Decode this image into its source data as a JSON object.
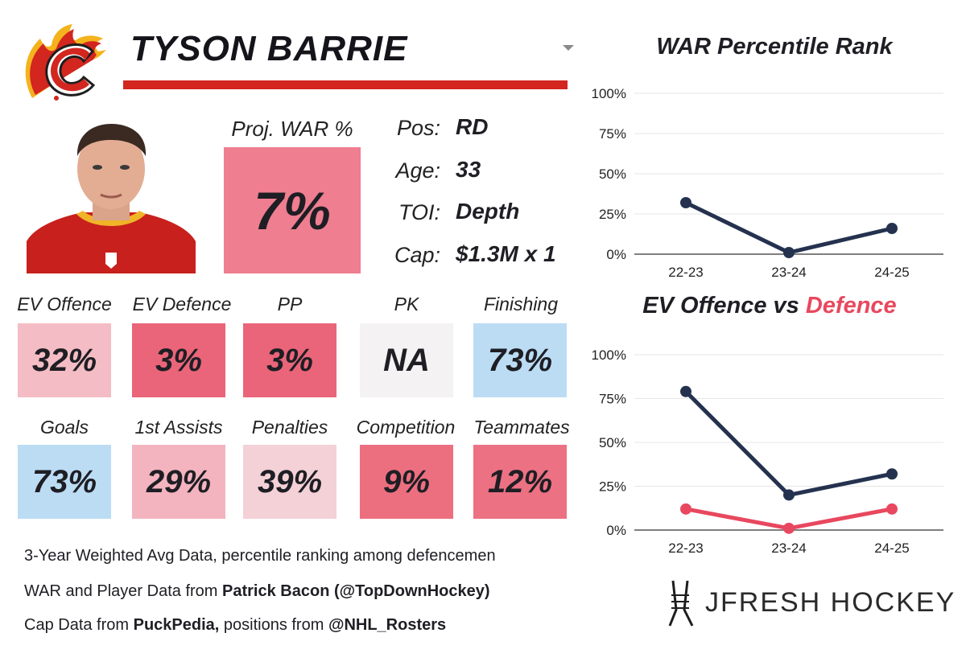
{
  "player": {
    "name": "TYSON BARRIE",
    "team_logo": "calgary-flames-logo",
    "photo": "player-headshot"
  },
  "projection": {
    "label": "Proj. WAR %",
    "value": "7%",
    "color": "#ee7e90"
  },
  "info": [
    {
      "label": "Pos:",
      "value": "RD"
    },
    {
      "label": "Age:",
      "value": "33"
    },
    {
      "label": "TOI:",
      "value": "Depth"
    },
    {
      "label": "Cap:",
      "value": "$1.3M x 1"
    }
  ],
  "tiles_row1": [
    {
      "label": "EV Offence",
      "value": "32%",
      "color": "#f4bcc4"
    },
    {
      "label": "EV Defence",
      "value": "3%",
      "color": "#ea6579"
    },
    {
      "label": "PP",
      "value": "3%",
      "color": "#ea6579"
    },
    {
      "label": "PK",
      "value": "NA",
      "color": "#f4f2f2"
    },
    {
      "label": "Finishing",
      "value": "73%",
      "color": "#bcdcf4"
    }
  ],
  "tiles_row2": [
    {
      "label": "Goals",
      "value": "73%",
      "color": "#bcdcf4"
    },
    {
      "label": "1st Assists",
      "value": "29%",
      "color": "#f3b4bf"
    },
    {
      "label": "Penalties",
      "value": "39%",
      "color": "#f3d1d7"
    },
    {
      "label": "Competition",
      "value": "9%",
      "color": "#ec6f80"
    },
    {
      "label": "Teammates",
      "value": "12%",
      "color": "#ec7183"
    }
  ],
  "footnotes": {
    "line1": "3-Year Weighted Avg Data, percentile ranking among defencemen",
    "line2_prefix": "WAR and Player Data from ",
    "line2_bold": "Patrick Bacon (@TopDownHockey)",
    "line3_prefix": "Cap Data from ",
    "line3_bold": "PuckPedia,",
    "line3_mid": " positions from ",
    "line3_bold2": "@NHL_Rosters"
  },
  "brand": {
    "name": "JFRESH HOCKEY",
    "icon": "jfresh-hockey-stick-logo"
  },
  "chart_data": [
    {
      "type": "line",
      "title": "WAR Percentile Rank",
      "categories": [
        "22-23",
        "23-24",
        "24-25"
      ],
      "yticks": [
        "0%",
        "25%",
        "50%",
        "75%",
        "100%"
      ],
      "ylim": [
        0,
        100
      ],
      "grid": true,
      "series": [
        {
          "values": [
            32,
            1,
            16
          ],
          "color": "#24324f"
        }
      ]
    },
    {
      "type": "line",
      "title_part1": "EV Offence vs ",
      "title_part2": "Defence",
      "title_part2_color": "#e8485f",
      "categories": [
        "22-23",
        "23-24",
        "24-25"
      ],
      "yticks": [
        "0%",
        "25%",
        "50%",
        "75%",
        "100%"
      ],
      "ylim": [
        0,
        100
      ],
      "grid": true,
      "series": [
        {
          "name": "EV Offence",
          "values": [
            79,
            20,
            32
          ],
          "color": "#24324f"
        },
        {
          "name": "Defence",
          "values": [
            12,
            1,
            12
          ],
          "color": "#e8485f"
        }
      ]
    }
  ]
}
